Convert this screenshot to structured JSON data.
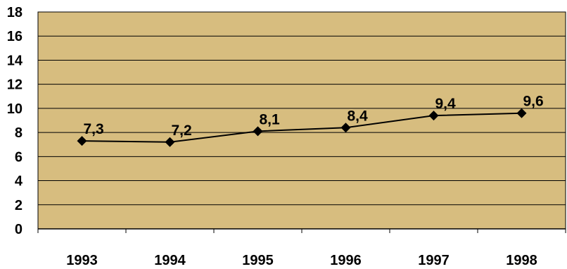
{
  "chart_data": {
    "type": "line",
    "categories": [
      "1993",
      "1994",
      "1995",
      "1996",
      "1997",
      "1998"
    ],
    "values": [
      7.3,
      7.2,
      8.1,
      8.4,
      9.4,
      9.6
    ],
    "data_labels": [
      "7,3",
      "7,2",
      "8,1",
      "8,4",
      "9,4",
      "9,6"
    ],
    "yticks": [
      "0",
      "2",
      "4",
      "6",
      "8",
      "10",
      "12",
      "14",
      "16",
      "18"
    ],
    "ylim": [
      0,
      18
    ],
    "title": "",
    "xlabel": "",
    "ylabel": "",
    "grid": true,
    "legend": "none",
    "colors": {
      "plot_background": "#d7bd7f",
      "line": "#000000",
      "marker": "#000000",
      "gridline": "#000000"
    },
    "marker": "diamond"
  }
}
